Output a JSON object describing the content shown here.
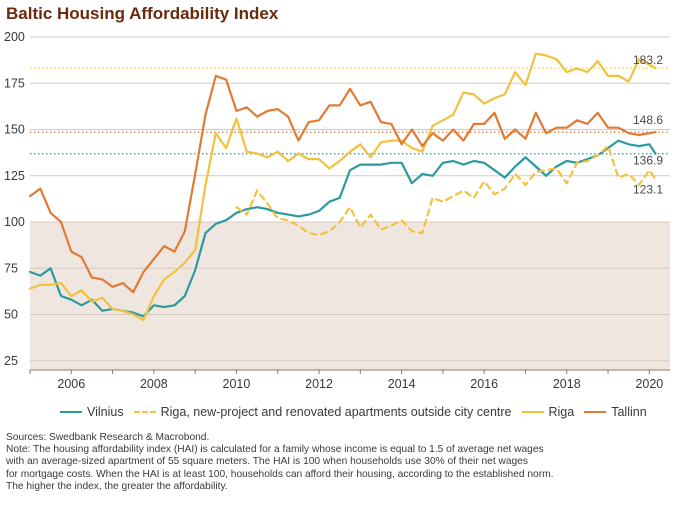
{
  "title": "Baltic Housing Affordability Index",
  "colors": {
    "vilnius": "#2a9aa1",
    "riga_new": "#f2c23c",
    "riga": "#f2c23c",
    "tallinn": "#e07a35",
    "shade": "#f0e6e0",
    "grid": "#d8c9bf",
    "axis": "#8a7a70",
    "title": "#6a2a0c"
  },
  "legend": {
    "vilnius": "Vilnius",
    "riga_new": "Riga, new-project and renovated apartments outside city centre",
    "riga": "Riga",
    "tallinn": "Tallinn"
  },
  "notes": {
    "source": "Sources: Swedbank Research & Macrobond.",
    "line1": "Note: The housing affordability index (HAI) is calculated for a family whose income is equal to 1.5 of average net wages",
    "line2": "with an average-sized apartment of 55 square meters. The HAI is 100 when households use 30% of their net wages",
    "line3": "for mortgage costs. When the HAI is at least 100, households can afford their housing, according to the established norm.",
    "line4": "The higher the index, the greater the affordability."
  },
  "chart_data": {
    "type": "line",
    "title": "Baltic Housing Affordability Index",
    "xlim": [
      2005,
      2020.5
    ],
    "ylim": [
      20,
      200
    ],
    "x_ticks": [
      2006,
      2008,
      2010,
      2012,
      2014,
      2016,
      2018,
      2020
    ],
    "y_ticks": [
      25,
      50,
      75,
      100,
      125,
      150,
      175,
      200
    ],
    "shaded_region": {
      "from": 20,
      "to": 100
    },
    "legend_position": "bottom",
    "end_labels": [
      "183.2",
      "148.6",
      "136.9",
      "123.1"
    ],
    "series": [
      {
        "name": "Vilnius",
        "key": "vilnius",
        "style": "solid",
        "reference_line": 136.9,
        "end_label": "136.9",
        "x": [
          2005.0,
          2005.25,
          2005.5,
          2005.75,
          2006.0,
          2006.25,
          2006.5,
          2006.75,
          2007.0,
          2007.25,
          2007.5,
          2007.75,
          2008.0,
          2008.25,
          2008.5,
          2008.75,
          2009.0,
          2009.25,
          2009.5,
          2009.75,
          2010.0,
          2010.25,
          2010.5,
          2010.75,
          2011.0,
          2011.25,
          2011.5,
          2011.75,
          2012.0,
          2012.25,
          2012.5,
          2012.75,
          2013.0,
          2013.25,
          2013.5,
          2013.75,
          2014.0,
          2014.25,
          2014.5,
          2014.75,
          2015.0,
          2015.25,
          2015.5,
          2015.75,
          2016.0,
          2016.25,
          2016.5,
          2016.75,
          2017.0,
          2017.25,
          2017.5,
          2017.75,
          2018.0,
          2018.25,
          2018.5,
          2018.75,
          2019.0,
          2019.25,
          2019.5,
          2019.75,
          2020.0,
          2020.15
        ],
        "values": [
          73,
          71,
          75,
          60,
          58,
          55,
          58,
          52,
          53,
          52,
          51,
          49,
          55,
          54,
          55,
          60,
          74,
          94,
          99,
          101,
          105,
          107,
          108,
          107,
          105,
          104,
          103,
          104,
          106,
          111,
          113,
          128,
          131,
          131,
          131,
          132,
          132,
          121,
          126,
          125,
          132,
          133,
          131,
          133,
          132,
          128,
          124,
          130,
          135,
          130,
          125,
          130,
          133,
          132,
          134,
          136,
          140,
          144,
          142,
          141,
          142,
          136.9
        ]
      },
      {
        "name": "Riga, new-project and renovated apartments outside city centre",
        "key": "riga_new",
        "style": "dashed",
        "reference_line": null,
        "end_label": "123.1",
        "x": [
          2010.0,
          2010.25,
          2010.5,
          2010.75,
          2011.0,
          2011.25,
          2011.5,
          2011.75,
          2012.0,
          2012.25,
          2012.5,
          2012.75,
          2013.0,
          2013.25,
          2013.5,
          2013.75,
          2014.0,
          2014.25,
          2014.5,
          2014.75,
          2015.0,
          2015.25,
          2015.5,
          2015.75,
          2016.0,
          2016.25,
          2016.5,
          2016.75,
          2017.0,
          2017.25,
          2017.5,
          2017.75,
          2018.0,
          2018.25,
          2018.5,
          2018.75,
          2019.0,
          2019.25,
          2019.5,
          2019.75,
          2020.0,
          2020.15
        ],
        "values": [
          108,
          104,
          117,
          110,
          102,
          101,
          98,
          94,
          93,
          95,
          100,
          108,
          97,
          104,
          96,
          98,
          101,
          95,
          94,
          113,
          111,
          114,
          117,
          113,
          122,
          115,
          118,
          126,
          120,
          127,
          128,
          129,
          121,
          132,
          133,
          136,
          141,
          124,
          126,
          120,
          128,
          123.1
        ]
      },
      {
        "name": "Riga",
        "key": "riga",
        "style": "solid",
        "reference_line": 183.2,
        "end_label": "183.2",
        "x": [
          2005.0,
          2005.25,
          2005.5,
          2005.75,
          2006.0,
          2006.25,
          2006.5,
          2006.75,
          2007.0,
          2007.25,
          2007.5,
          2007.75,
          2008.0,
          2008.25,
          2008.5,
          2008.75,
          2009.0,
          2009.25,
          2009.5,
          2009.75,
          2010.0,
          2010.25,
          2010.5,
          2010.75,
          2011.0,
          2011.25,
          2011.5,
          2011.75,
          2012.0,
          2012.25,
          2012.5,
          2012.75,
          2013.0,
          2013.25,
          2013.5,
          2013.75,
          2014.0,
          2014.25,
          2014.5,
          2014.75,
          2015.0,
          2015.25,
          2015.5,
          2015.75,
          2016.0,
          2016.25,
          2016.5,
          2016.75,
          2017.0,
          2017.25,
          2017.5,
          2017.75,
          2018.0,
          2018.25,
          2018.5,
          2018.75,
          2019.0,
          2019.25,
          2019.5,
          2019.75,
          2020.0,
          2020.15
        ],
        "values": [
          64,
          66,
          66,
          67,
          60,
          63,
          57,
          59,
          53,
          52,
          50,
          47,
          60,
          69,
          73,
          78,
          85,
          120,
          148,
          140,
          156,
          138,
          137,
          135,
          138,
          133,
          137,
          134,
          134,
          129,
          133,
          138,
          142,
          135,
          143,
          144,
          144,
          140,
          138,
          152,
          155,
          158,
          170,
          169,
          164,
          167,
          169,
          181,
          174,
          191,
          190,
          188,
          181,
          183,
          181,
          187,
          179,
          179,
          176,
          188,
          185,
          183.2
        ]
      },
      {
        "name": "Tallinn",
        "key": "tallinn",
        "style": "solid",
        "reference_line": 148.6,
        "end_label": "148.6",
        "x": [
          2005.0,
          2005.25,
          2005.5,
          2005.75,
          2006.0,
          2006.25,
          2006.5,
          2006.75,
          2007.0,
          2007.25,
          2007.5,
          2007.75,
          2008.0,
          2008.25,
          2008.5,
          2008.75,
          2009.0,
          2009.25,
          2009.5,
          2009.75,
          2010.0,
          2010.25,
          2010.5,
          2010.75,
          2011.0,
          2011.25,
          2011.5,
          2011.75,
          2012.0,
          2012.25,
          2012.5,
          2012.75,
          2013.0,
          2013.25,
          2013.5,
          2013.75,
          2014.0,
          2014.25,
          2014.5,
          2014.75,
          2015.0,
          2015.25,
          2015.5,
          2015.75,
          2016.0,
          2016.25,
          2016.5,
          2016.75,
          2017.0,
          2017.25,
          2017.5,
          2017.75,
          2018.0,
          2018.25,
          2018.5,
          2018.75,
          2019.0,
          2019.25,
          2019.5,
          2019.75,
          2020.0,
          2020.15
        ],
        "values": [
          114,
          118,
          105,
          100,
          84,
          81,
          70,
          69,
          65,
          67,
          62,
          73,
          80,
          87,
          84,
          95,
          126,
          158,
          179,
          177,
          160,
          162,
          157,
          160,
          161,
          157,
          144,
          154,
          155,
          163,
          163,
          172,
          163,
          165,
          154,
          153,
          142,
          150,
          141,
          148,
          144,
          150,
          144,
          153,
          153,
          159,
          145,
          150,
          145,
          159,
          148,
          151,
          151,
          155,
          153,
          159,
          151,
          151,
          148,
          147,
          148,
          148.6
        ]
      }
    ]
  }
}
